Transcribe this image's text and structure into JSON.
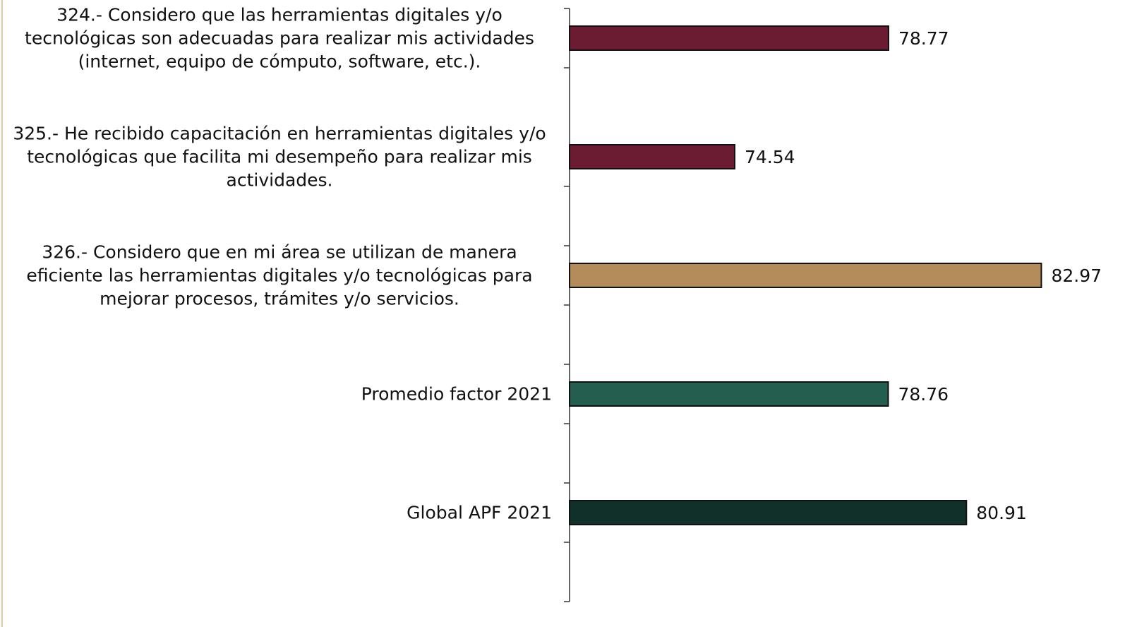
{
  "chart_data": {
    "type": "bar",
    "orientation": "horizontal",
    "categories": [
      "324.- Considero que las herramientas digitales y/o tecnológicas son adecuadas para realizar mis actividades (internet, equipo de cómputo, software, etc.).",
      "325.- He recibido capacitación en herramientas digitales y/o tecnológicas que facilita mi desempeño para realizar mis actividades.",
      "326.- Considero que en mi área se utilizan de manera eficiente las herramientas digitales y/o tecnológicas para mejorar procesos, trámites y/o servicios.",
      "Promedio factor 2021",
      "Global APF 2021"
    ],
    "values": [
      78.77,
      74.54,
      82.97,
      78.76,
      80.91
    ],
    "colors": [
      "#6b1c33",
      "#6b1c33",
      "#b48c5c",
      "#235e4e",
      "#12302a"
    ],
    "xlim": [
      70,
      85.6
    ]
  }
}
